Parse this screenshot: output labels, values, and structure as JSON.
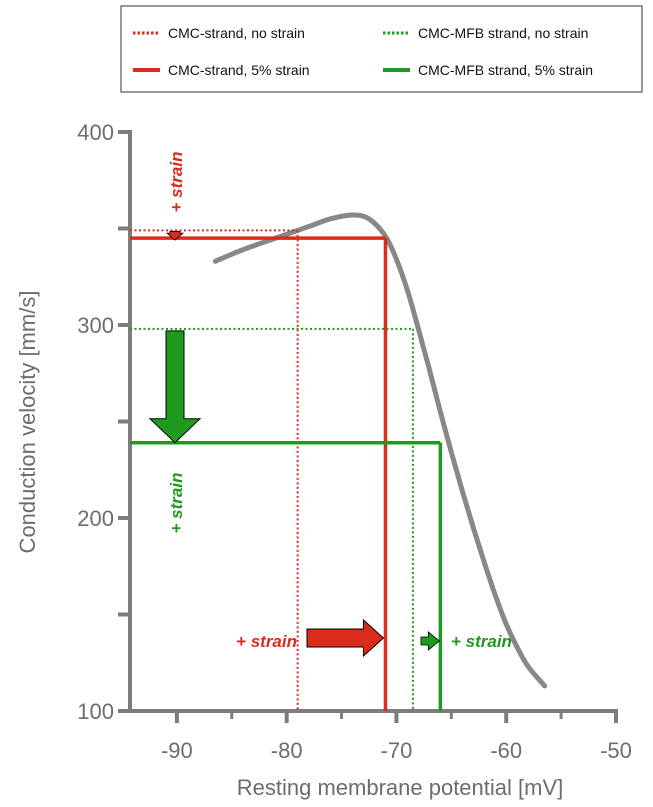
{
  "chart_data": {
    "type": "line",
    "xlabel": "Resting membrane potential [mV]",
    "ylabel": "Conduction velocity [mm/s]",
    "xlim": [
      -95,
      -50
    ],
    "ylim": [
      100,
      400
    ],
    "x_ticks": [
      -90,
      -80,
      -70,
      -60,
      -50
    ],
    "x_tick_labels": [
      "-90",
      "-80",
      "-70",
      "-60",
      "-50"
    ],
    "y_ticks": [
      100,
      150,
      200,
      250,
      300,
      350,
      400
    ],
    "y_tick_labels": [
      "100",
      "",
      "200",
      "",
      "300",
      "",
      "400"
    ],
    "grid": false,
    "legend_position": "top",
    "curve": {
      "color": "#888888",
      "x": [
        -86.5,
        -84,
        -81,
        -78,
        -76,
        -74,
        -72.5,
        -71,
        -70,
        -69,
        -68,
        -67,
        -66,
        -65,
        -64,
        -63,
        -62,
        -61,
        -60,
        -59,
        -58,
        -56.5
      ],
      "y": [
        333,
        339,
        345,
        351,
        355,
        357,
        355,
        346,
        334,
        318,
        298,
        277,
        255,
        234,
        214,
        195,
        177,
        160,
        145,
        133,
        123,
        113
      ]
    },
    "series": [
      {
        "name": "CMC-strand, no strain",
        "color": "#dd2b1a",
        "style": "dotted",
        "x": -79,
        "y": 349
      },
      {
        "name": "CMC-strand, 5% strain",
        "color": "#dd2b1a",
        "style": "solid",
        "x": -71,
        "y": 345
      },
      {
        "name": "CMC-MFB strand, no strain",
        "color": "#1f9a1f",
        "style": "dotted",
        "x": -68.5,
        "y": 298
      },
      {
        "name": "CMC-MFB strand, 5% strain",
        "color": "#1f9a1f",
        "style": "solid",
        "x": -66,
        "y": 239
      }
    ],
    "annotations": {
      "red_vertical_label": "+ strain",
      "green_vertical_label": "+ strain",
      "red_horizontal_label": "+ strain",
      "green_horizontal_label": "+ strain"
    }
  }
}
